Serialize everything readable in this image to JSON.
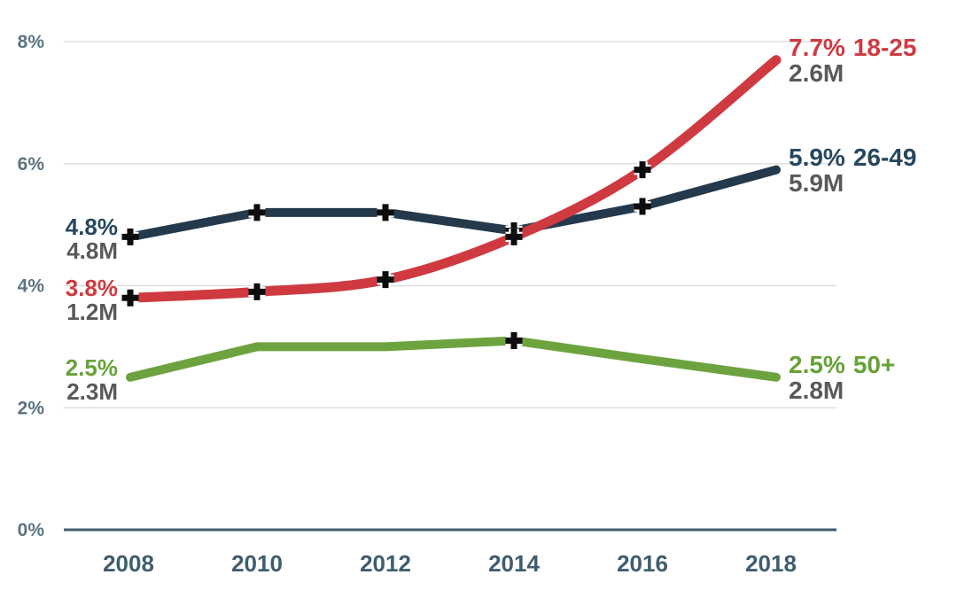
{
  "chart_data": {
    "type": "line",
    "title": "",
    "x": [
      2008,
      2010,
      2012,
      2014,
      2016,
      2018
    ],
    "x_tick_labels": [
      "2008",
      "2010",
      "2012",
      "2014",
      "2016",
      "2018"
    ],
    "y_ticks": [
      0,
      2,
      4,
      6,
      8
    ],
    "y_tick_labels": [
      "0%",
      "2%",
      "4%",
      "6%",
      "8%"
    ],
    "ylim": [
      0,
      8
    ],
    "grid": "horizontal-gridlines-at-2-4-6-8",
    "legend_position": "inline-end-labels",
    "marker": {
      "shape": "plus",
      "color": "#0d0d0d"
    },
    "colors": {
      "grid": "#d9d9d9",
      "axis_baseline": "#3f5d6e",
      "y_tick_text": "#5b7382",
      "x_tick_text": "#3f5d6e",
      "volume_text": "#58595b"
    },
    "series": [
      {
        "name": "26-49",
        "color": "#24394b",
        "label_color": "#26485f",
        "values": [
          4.8,
          5.2,
          5.2,
          4.9,
          5.3,
          5.9
        ],
        "marker_x": [
          2008,
          2010,
          2012,
          2014,
          2016
        ],
        "smooth": false,
        "start_label": {
          "percent": "4.8%",
          "volume": "4.8M"
        },
        "end_label": {
          "percent": "5.9%",
          "group": "26-49",
          "volume": "5.9M"
        }
      },
      {
        "name": "18-25",
        "color": "#cf3a40",
        "label_color": "#cf3a40",
        "values": [
          3.8,
          3.9,
          4.1,
          4.8,
          5.9,
          7.7
        ],
        "marker_x": [
          2008,
          2010,
          2012,
          2014,
          2016
        ],
        "smooth": true,
        "start_label": {
          "percent": "3.8%",
          "volume": "1.2M"
        },
        "end_label": {
          "percent": "7.7%",
          "group": "18-25",
          "volume": "2.6M"
        }
      },
      {
        "name": "50+",
        "color": "#6da33e",
        "label_color": "#67a238",
        "values": [
          2.5,
          3.0,
          3.0,
          3.1,
          2.8,
          2.5
        ],
        "marker_x": [
          2014
        ],
        "smooth": false,
        "start_label": {
          "percent": "2.5%",
          "volume": "2.3M"
        },
        "end_label": {
          "percent": "2.5%",
          "group": "50+",
          "volume": "2.8M"
        }
      }
    ]
  }
}
